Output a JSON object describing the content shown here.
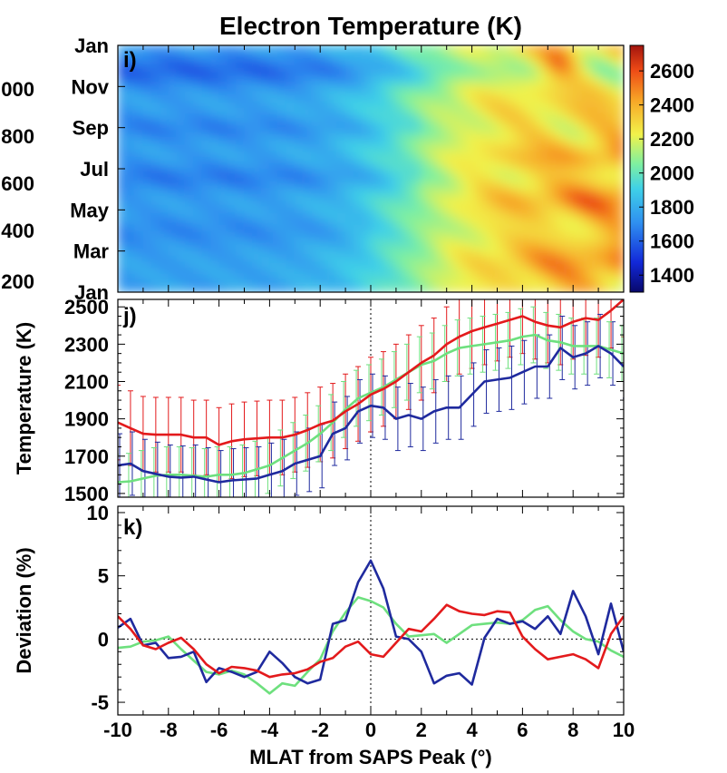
{
  "figure": {
    "title": "Electron Temperature (K)",
    "xlabel": "MLAT from SAPS Peak (°)",
    "x_ticks": [
      "-10",
      "-8",
      "-6",
      "-4",
      "-2",
      "0",
      "2",
      "4",
      "6",
      "8",
      "10"
    ]
  },
  "chart_data": [
    {
      "panel_label": "i)",
      "type": "heatmap",
      "title": "Electron Temperature (K)",
      "xlim": [
        -10,
        10
      ],
      "y_ticks_left": [
        "Jan",
        "Mar",
        "May",
        "Jul",
        "Sep",
        "Nov",
        "Jan"
      ],
      "y_ticks_far_left": [
        "200",
        "400",
        "600",
        "800",
        "000"
      ],
      "colorbar": {
        "ticks": [
          "1400",
          "1600",
          "1800",
          "2000",
          "2200",
          "2400",
          "2600"
        ],
        "range": [
          1300,
          2750
        ]
      },
      "z_description": "Electron temperature vs. day of year and MLAT from SAPS peak"
    },
    {
      "panel_label": "j)",
      "type": "line",
      "ylabel": "Temperature (K)",
      "y_ticks": [
        "1500",
        "1700",
        "1900",
        "2100",
        "2300",
        "2500"
      ],
      "ylim": [
        1480,
        2540
      ],
      "xlim": [
        -10,
        10
      ],
      "x": [
        -10,
        -9.5,
        -9,
        -8.5,
        -8,
        -7.5,
        -7,
        -6.5,
        -6,
        -5.5,
        -5,
        -4.5,
        -4,
        -3.5,
        -3,
        -2.5,
        -2,
        -1.5,
        -1,
        -0.5,
        0,
        0.5,
        1,
        1.5,
        2,
        2.5,
        3,
        3.5,
        4,
        4.5,
        5,
        5.5,
        6,
        6.5,
        7,
        7.5,
        8,
        8.5,
        9,
        9.5,
        10
      ],
      "series": [
        {
          "color": "#e31a1c",
          "values": [
            1880,
            1850,
            1820,
            1815,
            1815,
            1815,
            1800,
            1800,
            1760,
            1780,
            1790,
            1795,
            1800,
            1800,
            1815,
            1840,
            1870,
            1890,
            1940,
            1980,
            2030,
            2060,
            2100,
            2150,
            2200,
            2240,
            2300,
            2340,
            2370,
            2390,
            2410,
            2430,
            2450,
            2420,
            2400,
            2390,
            2420,
            2440,
            2430,
            2480,
            2540
          ]
        },
        {
          "color": "#6ee07e",
          "values": [
            1560,
            1565,
            1580,
            1595,
            1600,
            1600,
            1595,
            1590,
            1600,
            1600,
            1610,
            1630,
            1650,
            1690,
            1730,
            1770,
            1820,
            1880,
            1950,
            2010,
            2040,
            2070,
            2110,
            2150,
            2190,
            2210,
            2250,
            2280,
            2290,
            2300,
            2310,
            2320,
            2340,
            2350,
            2320,
            2310,
            2290,
            2290,
            2290,
            2270,
            2250
          ]
        },
        {
          "color": "#1f2a9e",
          "values": [
            1650,
            1660,
            1620,
            1605,
            1590,
            1585,
            1590,
            1575,
            1560,
            1570,
            1575,
            1580,
            1600,
            1620,
            1660,
            1680,
            1700,
            1820,
            1850,
            1940,
            1970,
            1960,
            1900,
            1920,
            1900,
            1940,
            1960,
            1960,
            2030,
            2100,
            2110,
            2120,
            2150,
            2180,
            2180,
            2280,
            2230,
            2250,
            2290,
            2250,
            2180
          ]
        }
      ],
      "error_bar_halfwidth": {
        "red": 200,
        "blue": 170
      }
    },
    {
      "panel_label": "k)",
      "type": "line",
      "ylabel": "Deviation (%)",
      "y_ticks": [
        "-5",
        "0",
        "5",
        "10"
      ],
      "ylim": [
        -6,
        10.5
      ],
      "xlim": [
        -10,
        10
      ],
      "x": [
        -10,
        -9.5,
        -9,
        -8.5,
        -8,
        -7.5,
        -7,
        -6.5,
        -6,
        -5.5,
        -5,
        -4.5,
        -4,
        -3.5,
        -3,
        -2.5,
        -2,
        -1.5,
        -1,
        -0.5,
        0,
        0.5,
        1,
        1.5,
        2,
        2.5,
        3,
        3.5,
        4,
        4.5,
        5,
        5.5,
        6,
        6.5,
        7,
        7.5,
        8,
        8.5,
        9,
        9.5,
        10
      ],
      "series": [
        {
          "color": "#e31a1c",
          "values": [
            1.8,
            0.8,
            -0.5,
            -0.8,
            -0.3,
            0.1,
            -0.8,
            -2.0,
            -2.7,
            -2.2,
            -2.3,
            -2.5,
            -3.0,
            -2.8,
            -2.7,
            -2.4,
            -1.8,
            -1.5,
            -0.6,
            -0.2,
            -1.2,
            -1.4,
            -0.3,
            0.8,
            0.6,
            1.6,
            2.7,
            2.2,
            2.0,
            1.9,
            2.2,
            2.1,
            0.2,
            -0.8,
            -1.6,
            -1.4,
            -1.2,
            -1.6,
            -2.3,
            0.4,
            1.8
          ]
        },
        {
          "color": "#6ee07e",
          "values": [
            -0.7,
            -0.6,
            -0.2,
            -0.1,
            0.2,
            -0.8,
            -1.7,
            -2.6,
            -2.8,
            -2.5,
            -2.8,
            -3.5,
            -4.3,
            -3.5,
            -3.7,
            -2.6,
            -1.6,
            0.6,
            2.1,
            3.3,
            3.0,
            2.5,
            1.2,
            0.2,
            0.3,
            0.4,
            -0.3,
            0.4,
            1.1,
            1.2,
            1.3,
            1.2,
            1.5,
            2.3,
            2.6,
            1.5,
            0.6,
            0.0,
            -0.2,
            -0.9,
            -1.4
          ]
        },
        {
          "color": "#1f2a9e",
          "values": [
            0.9,
            1.6,
            -0.5,
            -0.3,
            -1.5,
            -1.4,
            -1.0,
            -3.4,
            -2.3,
            -2.6,
            -3.0,
            -2.6,
            -1.0,
            -1.9,
            -3.0,
            -3.5,
            -3.2,
            1.2,
            1.5,
            4.5,
            6.2,
            4.0,
            0.2,
            0.0,
            -1.0,
            -3.5,
            -2.9,
            -2.7,
            -3.6,
            0.1,
            1.6,
            1.2,
            1.4,
            0.8,
            1.8,
            0.4,
            3.8,
            1.8,
            -1.2,
            2.8,
            -1.0
          ]
        }
      ]
    }
  ]
}
